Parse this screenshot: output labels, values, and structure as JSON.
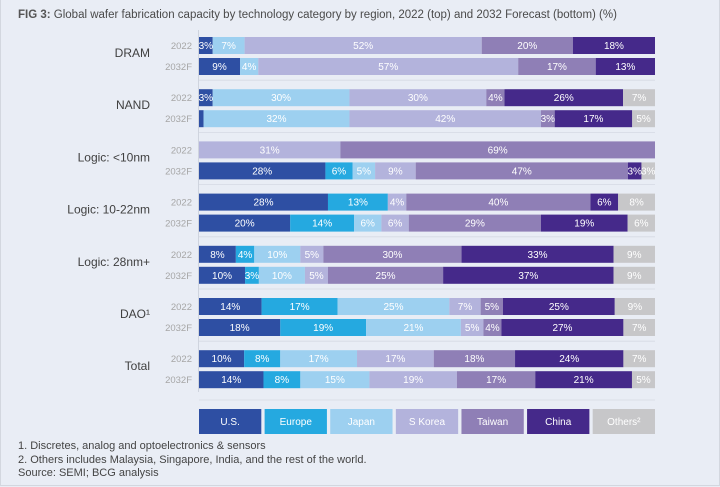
{
  "title_prefix": "FIG 3:",
  "title_text": " Global wafer fabrication capacity by technology category by region, 2022 (top) and 2032 Forecast (bottom) (%)",
  "notes": [
    "1. Discretes, analog and optoelectronics & sensors",
    "2. Others includes Malaysia, Singapore, India, and the rest of the world.",
    "Source: SEMI; BCG analysis"
  ],
  "chart_data": {
    "type": "bar",
    "orientation": "horizontal",
    "stacked": true,
    "normalized": true,
    "title": "Global wafer fabrication capacity by technology category by region, 2022 (top) and 2032 Forecast (bottom) (%)",
    "xlabel": "",
    "ylabel": "",
    "xlim": [
      0,
      100
    ],
    "legend_position": "bottom",
    "regions": [
      {
        "name": "U.S.",
        "color": "#2e4fa3",
        "text_color": "#ffffff"
      },
      {
        "name": "Europe",
        "color": "#25a9e0",
        "text_color": "#ffffff"
      },
      {
        "name": "Japan",
        "color": "#9dd0f0",
        "text_color": "#ffffff"
      },
      {
        "name": "S Korea",
        "color": "#b3b3dc",
        "text_color": "#ffffff"
      },
      {
        "name": "Taiwan",
        "color": "#8f7fb6",
        "text_color": "#ffffff"
      },
      {
        "name": "China",
        "color": "#45298a",
        "text_color": "#ffffff"
      },
      {
        "name": "Others²",
        "color": "#c7c7c9",
        "text_color": "#ffffff"
      }
    ],
    "groups": [
      {
        "category": "DRAM",
        "rows": [
          {
            "year": "2022",
            "values": [
              3,
              0,
              7,
              52,
              20,
              18,
              0
            ],
            "labels": [
              "3%",
              "",
              "7%",
              "52%",
              "20%",
              "18%",
              ""
            ]
          },
          {
            "year": "2032F",
            "values": [
              9,
              0,
              4,
              57,
              17,
              13,
              0
            ],
            "labels": [
              "9%",
              "",
              "4%",
              "57%",
              "17%",
              "13%",
              ""
            ]
          }
        ]
      },
      {
        "category": "NAND",
        "rows": [
          {
            "year": "2022",
            "values": [
              3,
              0,
              30,
              30,
              4,
              26,
              7
            ],
            "labels": [
              "3%",
              "",
              "30%",
              "30%",
              "4%",
              "26%",
              "7%"
            ]
          },
          {
            "year": "2032F",
            "values": [
              1,
              0,
              32,
              42,
              3,
              17,
              5
            ],
            "labels": [
              "",
              "",
              "32%",
              "42%",
              "3%",
              "17%",
              "5%"
            ]
          }
        ]
      },
      {
        "category": "Logic: <10nm",
        "rows": [
          {
            "year": "2022",
            "values": [
              0,
              0,
              0,
              31,
              69,
              0,
              0
            ],
            "labels": [
              "",
              "",
              "",
              "31%",
              "69%",
              "",
              ""
            ]
          },
          {
            "year": "2032F",
            "values": [
              28,
              6,
              5,
              9,
              47,
              3,
              3
            ],
            "labels": [
              "28%",
              "6%",
              "5%",
              "9%",
              "47%",
              "3%",
              "3%"
            ]
          }
        ]
      },
      {
        "category": "Logic: 10-22nm",
        "rows": [
          {
            "year": "2022",
            "values": [
              28,
              13,
              0,
              4,
              40,
              6,
              8
            ],
            "labels": [
              "28%",
              "13%",
              "",
              "4%",
              "40%",
              "6%",
              "8%"
            ]
          },
          {
            "year": "2032F",
            "values": [
              20,
              14,
              6,
              6,
              29,
              19,
              6
            ],
            "labels": [
              "20%",
              "14%",
              "6%",
              "6%",
              "29%",
              "19%",
              "6%"
            ]
          }
        ]
      },
      {
        "category": "Logic: 28nm+",
        "rows": [
          {
            "year": "2022",
            "values": [
              8,
              4,
              10,
              5,
              30,
              33,
              9
            ],
            "labels": [
              "8%",
              "4%",
              "10%",
              "5%",
              "30%",
              "33%",
              "9%"
            ]
          },
          {
            "year": "2032F",
            "values": [
              10,
              3,
              10,
              5,
              25,
              37,
              9
            ],
            "labels": [
              "10%",
              "3%",
              "10%",
              "5%",
              "25%",
              "37%",
              "9%"
            ]
          }
        ]
      },
      {
        "category": "DAO¹",
        "rows": [
          {
            "year": "2022",
            "values": [
              14,
              17,
              25,
              7,
              5,
              25,
              9
            ],
            "labels": [
              "14%",
              "17%",
              "25%",
              "7%",
              "5%",
              "25%",
              "9%"
            ]
          },
          {
            "year": "2032F",
            "values": [
              18,
              19,
              21,
              5,
              4,
              27,
              7
            ],
            "labels": [
              "18%",
              "19%",
              "21%",
              "5%",
              "4%",
              "27%",
              "7%"
            ]
          }
        ]
      },
      {
        "category": "Total",
        "rows": [
          {
            "year": "2022",
            "values": [
              10,
              8,
              17,
              17,
              18,
              24,
              7
            ],
            "labels": [
              "10%",
              "8%",
              "17%",
              "17%",
              "18%",
              "24%",
              "7%"
            ]
          },
          {
            "year": "2032F",
            "values": [
              14,
              8,
              15,
              19,
              17,
              21,
              5
            ],
            "labels": [
              "14%",
              "8%",
              "15%",
              "19%",
              "17%",
              "21%",
              "5%"
            ]
          }
        ]
      }
    ]
  }
}
